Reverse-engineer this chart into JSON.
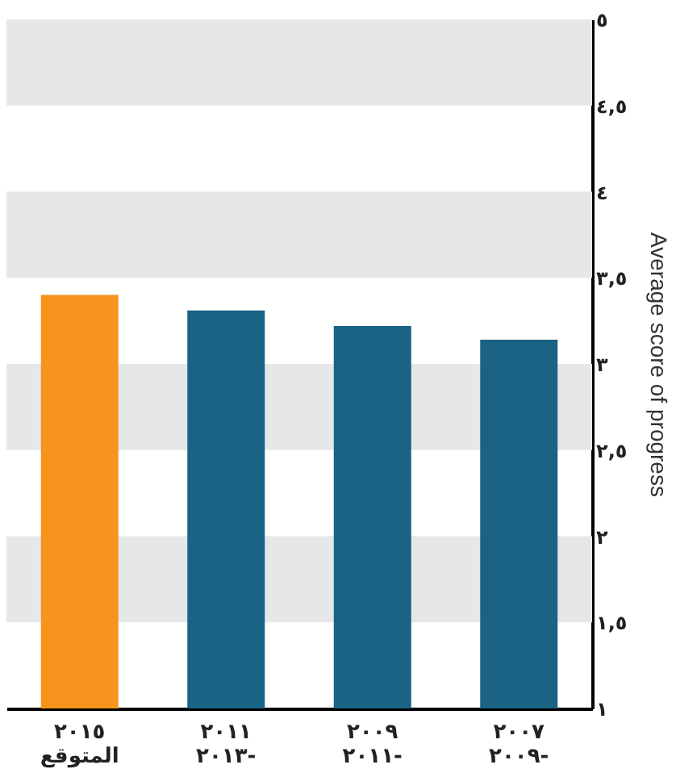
{
  "chart_data": {
    "type": "bar",
    "ylabel": "Average score of progress",
    "categories": [
      "٢٠١٥\nالمتوقع",
      "٢٠١١\n٢٠١٣-",
      "٢٠٠٩\n٢٠١١-",
      "٢٠٠٧\n٢٠٠٩-"
    ],
    "values": [
      3.4,
      3.31,
      3.22,
      3.14
    ],
    "colors": [
      "#f7941d",
      "#1b6384",
      "#1b6384",
      "#1b6384"
    ],
    "ylim": [
      1,
      5
    ],
    "yticks": [
      {
        "value": 1,
        "label": "١"
      },
      {
        "value": 1.5,
        "label": "١,٥"
      },
      {
        "value": 2,
        "label": "٢"
      },
      {
        "value": 2.5,
        "label": "٢,٥"
      },
      {
        "value": 3,
        "label": "٣"
      },
      {
        "value": 3.5,
        "label": "٣,٥"
      },
      {
        "value": 4,
        "label": "٤"
      },
      {
        "value": 4.5,
        "label": "٤,٥"
      },
      {
        "value": 5,
        "label": "٥"
      }
    ],
    "bands": [
      {
        "axis": "y",
        "from": 1.5,
        "to": 2,
        "color": "#e6e7e8"
      },
      {
        "axis": "y",
        "from": 2.5,
        "to": 3,
        "color": "#e6e7e8"
      },
      {
        "axis": "y",
        "from": 3.5,
        "to": 4,
        "color": "#e6e7e8"
      },
      {
        "axis": "y",
        "from": 4.5,
        "to": 5,
        "color": "#e6e7e8"
      }
    ],
    "grid": false
  }
}
